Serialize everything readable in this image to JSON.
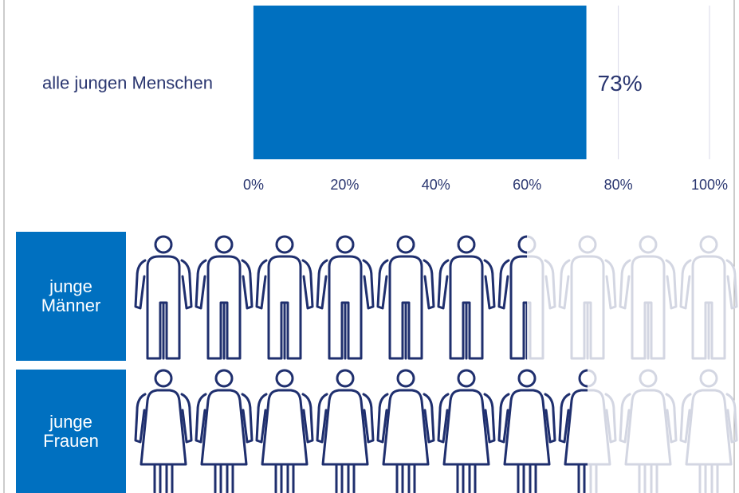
{
  "chart_data": [
    {
      "type": "bar",
      "categories": [
        "alle jungen Menschen"
      ],
      "values": [
        73
      ],
      "value_labels": [
        "73%"
      ],
      "color": "#0070c0",
      "xlim": [
        0,
        100
      ],
      "xticks": [
        {
          "value": 0,
          "label": "0%"
        },
        {
          "value": 20,
          "label": "20%"
        },
        {
          "value": 40,
          "label": "40%"
        },
        {
          "value": 60,
          "label": "60%"
        },
        {
          "value": 80,
          "label": "80%"
        },
        {
          "value": 100,
          "label": "100%"
        }
      ],
      "grid": true
    },
    {
      "type": "pictogram",
      "categories": [
        "junge Männer",
        "junge Frauen"
      ],
      "icons": [
        "man",
        "woman"
      ],
      "values": [
        65,
        75
      ],
      "xlim": [
        0,
        100
      ],
      "color": "#1f2f6e",
      "faded_color": "#d3d6e2",
      "box_color": "#0070c0"
    }
  ]
}
